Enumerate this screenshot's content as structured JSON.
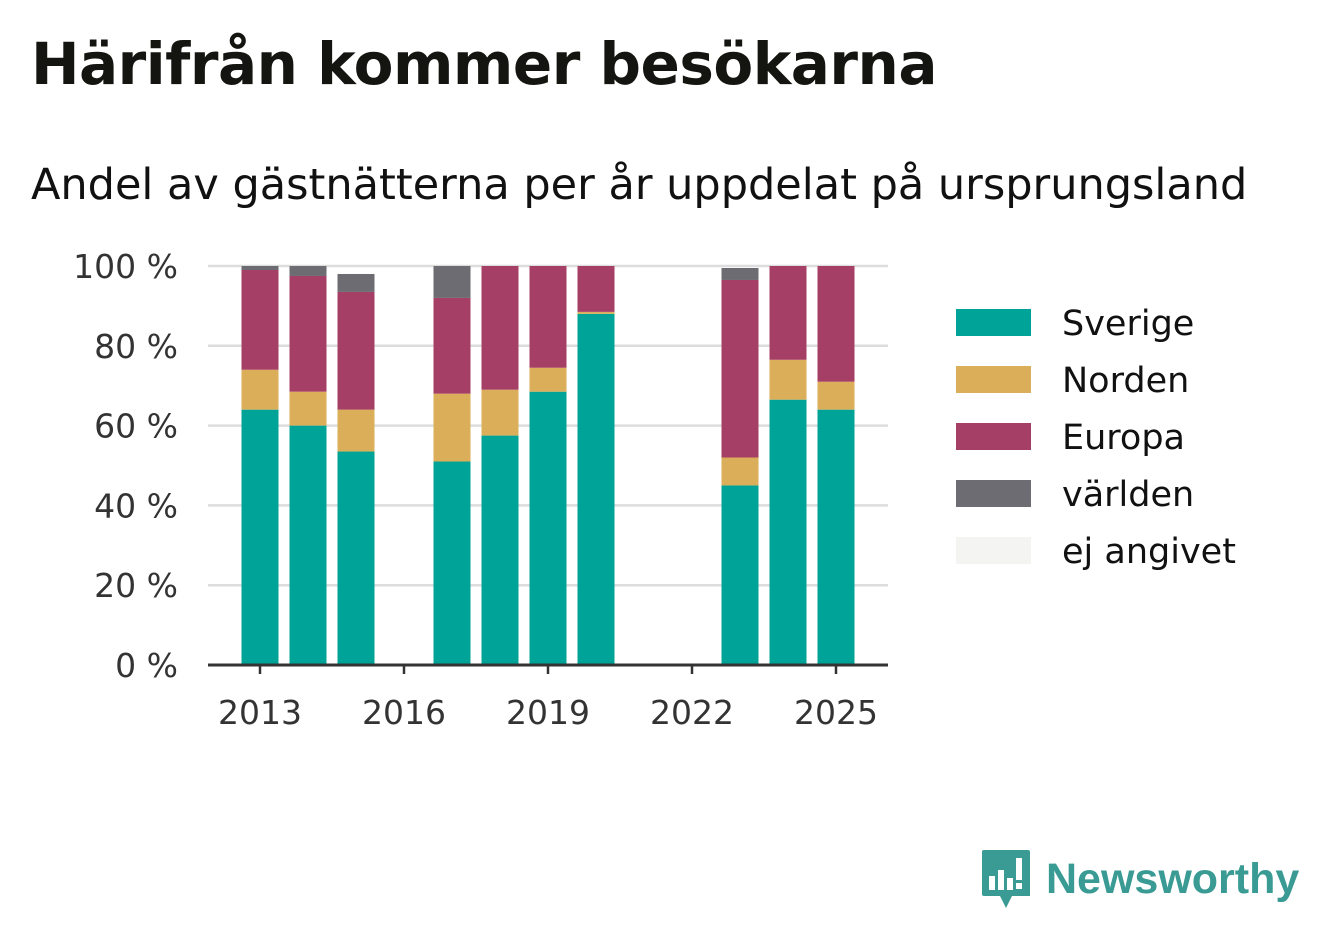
{
  "title": "Härifrån kommer besökarna",
  "subtitle": "Andel av gästnätterna per år uppdelat på ursprungsland",
  "brand": {
    "name": "Newsworthy",
    "icon": "newsworthy-logo-icon",
    "color": "#3a9a94"
  },
  "chart_data": {
    "type": "bar",
    "stacked": true,
    "categories": [
      "2013",
      "2014",
      "2015",
      "2016",
      "2017",
      "2018",
      "2019",
      "2020",
      "2021",
      "2022",
      "2023",
      "2024",
      "2025"
    ],
    "x_ticks": [
      "2013",
      "2016",
      "2019",
      "2022",
      "2025"
    ],
    "y_ticks": [
      "0 %",
      "20 %",
      "40 %",
      "60 %",
      "80 %",
      "100 %"
    ],
    "ylim": [
      0,
      100
    ],
    "grid": true,
    "legend_position": "right",
    "series": [
      {
        "name": "Sverige",
        "color": "#00a398",
        "values": [
          64,
          60,
          53.5,
          null,
          51,
          57.5,
          68.5,
          88,
          null,
          null,
          45,
          66.5,
          64
        ]
      },
      {
        "name": "Norden",
        "color": "#dbae59",
        "values": [
          10,
          8.5,
          10.5,
          null,
          17,
          11.5,
          6,
          0.5,
          null,
          null,
          7,
          10,
          7
        ]
      },
      {
        "name": "Europa",
        "color": "#a63f65",
        "values": [
          25,
          29,
          29.5,
          null,
          24,
          31,
          25.5,
          11.5,
          null,
          null,
          44.5,
          23.5,
          29
        ]
      },
      {
        "name": "världen",
        "color": "#6d6c72",
        "values": [
          1,
          2.5,
          4.5,
          null,
          8,
          0,
          0,
          0,
          null,
          null,
          3,
          0,
          0
        ]
      },
      {
        "name": "ej angivet",
        "color": "#f4f4f2",
        "values": [
          0,
          0,
          0,
          null,
          0,
          0,
          0,
          0,
          null,
          null,
          0,
          0,
          0
        ]
      }
    ]
  }
}
